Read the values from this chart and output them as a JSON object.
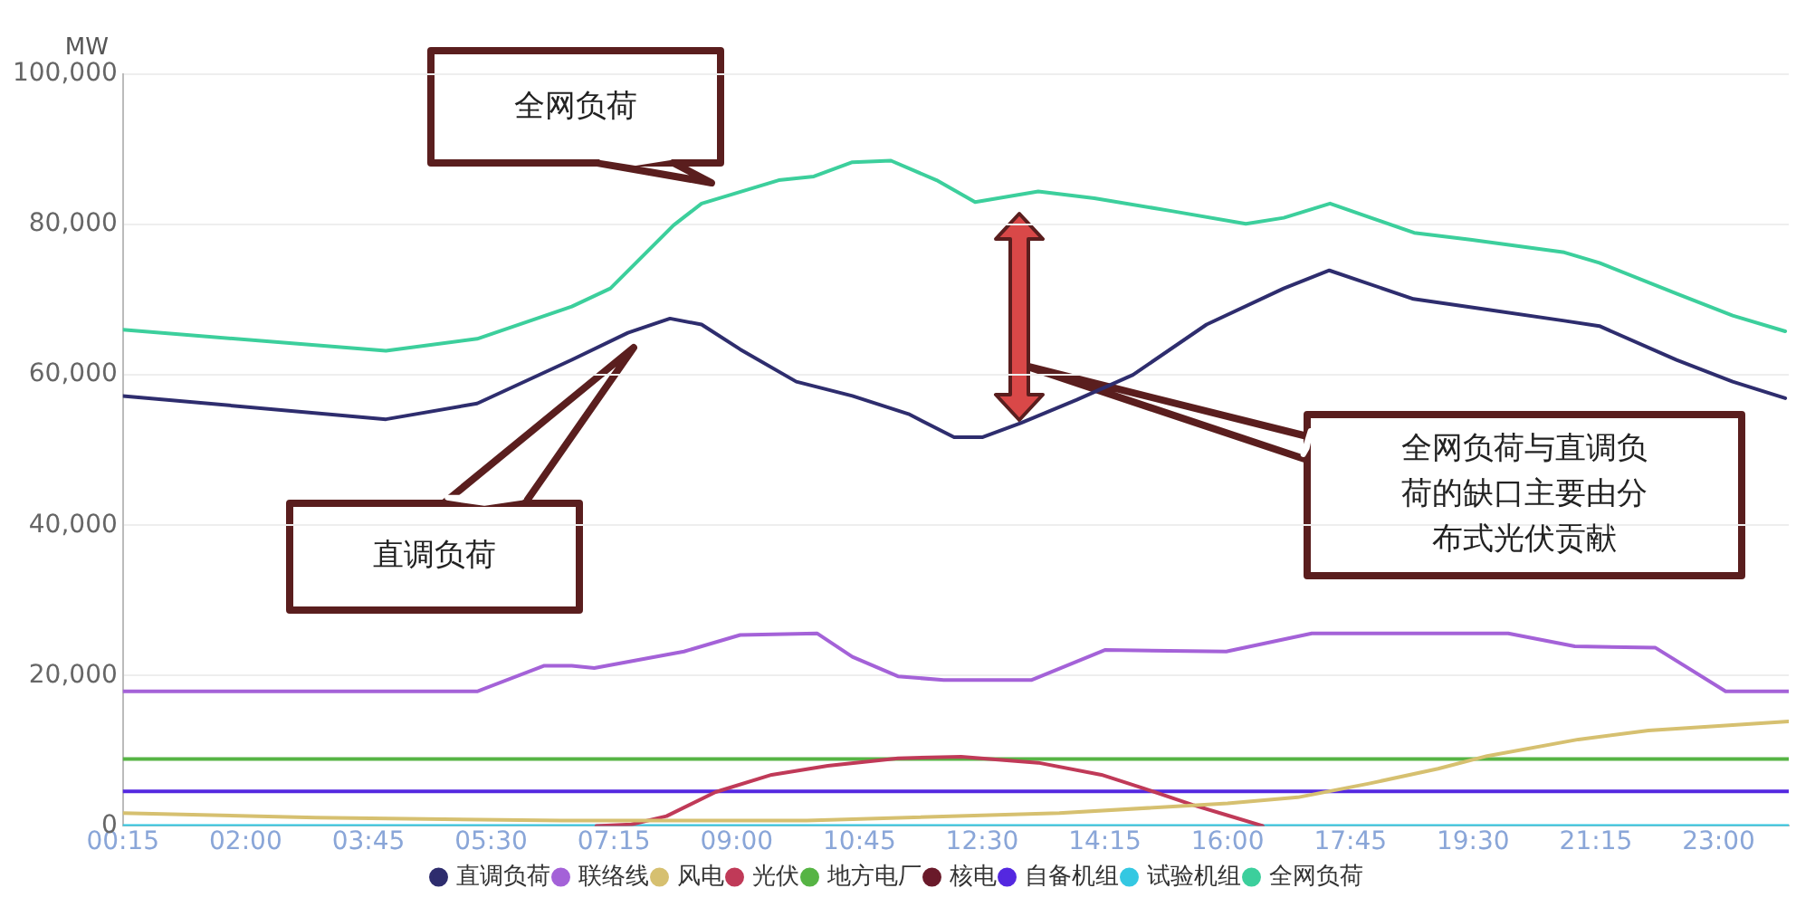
{
  "chart_data": {
    "type": "line",
    "ylabel": "MW",
    "xlim": [
      0.25,
      24
    ],
    "ylim": [
      0,
      100000
    ],
    "xticks": [
      {
        "value": 0.25,
        "label": "00:15"
      },
      {
        "value": 2,
        "label": "02:00"
      },
      {
        "value": 3.75,
        "label": "03:45"
      },
      {
        "value": 5.5,
        "label": "05:30"
      },
      {
        "value": 7.25,
        "label": "07:15"
      },
      {
        "value": 9,
        "label": "09:00"
      },
      {
        "value": 10.75,
        "label": "10:45"
      },
      {
        "value": 12.5,
        "label": "12:30"
      },
      {
        "value": 14.25,
        "label": "14:15"
      },
      {
        "value": 16,
        "label": "16:00"
      },
      {
        "value": 17.75,
        "label": "17:45"
      },
      {
        "value": 19.5,
        "label": "19:30"
      },
      {
        "value": 21.25,
        "label": "21:15"
      },
      {
        "value": 23,
        "label": "23:00"
      }
    ],
    "yticks": [
      {
        "value": 0,
        "label": "0"
      },
      {
        "value": 20000,
        "label": "20,000"
      },
      {
        "value": 40000,
        "label": "40,000"
      },
      {
        "value": 60000,
        "label": "60,000"
      },
      {
        "value": 80000,
        "label": "80,000"
      },
      {
        "value": 100000,
        "label": "100,000"
      }
    ],
    "grid": "y",
    "legend": "bottom",
    "marker": "none",
    "line_style": "solid",
    "series": [
      {
        "name": "直调负荷",
        "color": "#2e2d6e",
        "x": [
          0.25,
          4,
          5.3,
          6.65,
          7.45,
          8.05,
          8.5,
          9.05,
          9.85,
          10.65,
          11.45,
          12.1,
          12.5,
          13.05,
          13.85,
          14.65,
          15.7,
          16.8,
          17.45,
          18.65,
          19.7,
          20.8,
          21.3,
          22.4,
          23.2,
          23.95
        ],
        "values": [
          57200,
          54100,
          56200,
          62000,
          65600,
          67500,
          66700,
          63400,
          59100,
          57200,
          54800,
          51700,
          51700,
          53600,
          56700,
          60000,
          66700,
          71500,
          73900,
          70100,
          68700,
          67200,
          66500,
          62000,
          59100,
          56900
        ]
      },
      {
        "name": "联络线",
        "color": "#a462d8",
        "x": [
          0.25,
          5.3,
          6.25,
          6.65,
          6.97,
          8.25,
          9.05,
          10.15,
          10.65,
          11.3,
          11.95,
          13.2,
          14.25,
          15.98,
          17.2,
          20.0,
          20.95,
          22.1,
          23.1,
          24
        ],
        "values": [
          17900,
          17900,
          21300,
          21300,
          21000,
          23200,
          25400,
          25600,
          22500,
          19900,
          19400,
          19400,
          23400,
          23200,
          25600,
          25600,
          23900,
          23700,
          17900,
          17900
        ]
      },
      {
        "name": "风电",
        "color": "#d6c070",
        "x": [
          0.25,
          3,
          6.5,
          10,
          13.6,
          16,
          17,
          18,
          19,
          19.7,
          21,
          22,
          23.5,
          24
        ],
        "values": [
          1700,
          1100,
          700,
          700,
          1700,
          3000,
          3800,
          5600,
          7600,
          9300,
          11500,
          12700,
          13600,
          13900
        ]
      },
      {
        "name": "光伏",
        "color": "#c03a58",
        "x": [
          7,
          7.5,
          8,
          8.7,
          9.5,
          10.3,
          11.3,
          12.2,
          13.3,
          14.2,
          14.8,
          15.5,
          16,
          16.5
        ],
        "values": [
          0,
          200,
          1300,
          4500,
          6800,
          8000,
          9000,
          9200,
          8400,
          6800,
          5000,
          2800,
          1400,
          0
        ]
      },
      {
        "name": "地方电厂",
        "color": "#56b444",
        "x": [
          0.25,
          24
        ],
        "values": [
          8900,
          8900
        ]
      },
      {
        "name": "核电",
        "color": "#6a1a2a"
      },
      {
        "name": "自备机组",
        "color": "#5428e0",
        "x": [
          0.25,
          24
        ],
        "values": [
          4600,
          4600
        ]
      },
      {
        "name": "试验机组",
        "color": "#34c8e2",
        "x": [
          0.25,
          24
        ],
        "values": [
          0,
          0
        ]
      },
      {
        "name": "全网负荷",
        "color": "#3ccf9c",
        "x": [
          0.25,
          4,
          5.3,
          6.65,
          7.2,
          8.1,
          8.5,
          9.6,
          10.1,
          10.65,
          11.2,
          11.85,
          12.4,
          13.3,
          14.1,
          15.2,
          16.26,
          16.8,
          17.46,
          18.66,
          19.46,
          20.8,
          21.3,
          22.4,
          23.2,
          23.95
        ],
        "values": [
          66000,
          63200,
          64800,
          69100,
          71500,
          79900,
          82800,
          85900,
          86400,
          88300,
          88500,
          85900,
          83000,
          84400,
          83500,
          81800,
          80100,
          80900,
          82800,
          78900,
          78000,
          76300,
          74900,
          70800,
          67900,
          65800
        ]
      }
    ],
    "annotations": [
      "全网负荷",
      "直调负荷",
      "全网负荷与直调负荷的缺口主要由分布式光伏贡献"
    ]
  }
}
